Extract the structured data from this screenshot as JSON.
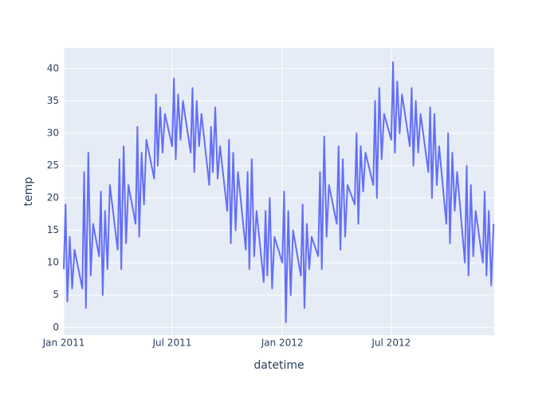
{
  "chart_data": {
    "type": "line",
    "x_label": "datetime",
    "y_label": "temp",
    "color": "#636efa",
    "grid": true,
    "x": [
      "2011-01-01",
      "2011-01-04",
      "2011-01-07",
      "2011-01-11",
      "2011-01-15",
      "2011-01-19",
      "2011-02-01",
      "2011-02-04",
      "2011-02-07",
      "2011-02-11",
      "2011-02-15",
      "2011-02-19",
      "2011-03-01",
      "2011-03-04",
      "2011-03-07",
      "2011-03-11",
      "2011-03-15",
      "2011-03-19",
      "2011-04-01",
      "2011-04-04",
      "2011-04-07",
      "2011-04-11",
      "2011-04-15",
      "2011-04-19",
      "2011-05-01",
      "2011-05-04",
      "2011-05-07",
      "2011-05-11",
      "2011-05-15",
      "2011-05-19",
      "2011-06-01",
      "2011-06-04",
      "2011-06-07",
      "2011-06-11",
      "2011-06-15",
      "2011-06-19",
      "2011-07-01",
      "2011-07-04",
      "2011-07-07",
      "2011-07-11",
      "2011-07-15",
      "2011-07-19",
      "2011-08-01",
      "2011-08-04",
      "2011-08-07",
      "2011-08-11",
      "2011-08-15",
      "2011-08-19",
      "2011-09-01",
      "2011-09-04",
      "2011-09-07",
      "2011-09-11",
      "2011-09-15",
      "2011-09-19",
      "2011-10-01",
      "2011-10-04",
      "2011-10-07",
      "2011-10-11",
      "2011-10-15",
      "2011-10-19",
      "2011-11-01",
      "2011-11-04",
      "2011-11-07",
      "2011-11-11",
      "2011-11-15",
      "2011-11-19",
      "2011-12-01",
      "2011-12-04",
      "2011-12-07",
      "2011-12-11",
      "2011-12-15",
      "2011-12-19",
      "2012-01-01",
      "2012-01-04",
      "2012-01-07",
      "2012-01-11",
      "2012-01-15",
      "2012-01-19",
      "2012-02-01",
      "2012-02-04",
      "2012-02-07",
      "2012-02-11",
      "2012-02-15",
      "2012-02-19",
      "2012-03-01",
      "2012-03-04",
      "2012-03-07",
      "2012-03-11",
      "2012-03-15",
      "2012-03-19",
      "2012-04-01",
      "2012-04-04",
      "2012-04-07",
      "2012-04-11",
      "2012-04-15",
      "2012-04-19",
      "2012-05-01",
      "2012-05-04",
      "2012-05-07",
      "2012-05-11",
      "2012-05-15",
      "2012-05-19",
      "2012-06-01",
      "2012-06-04",
      "2012-06-07",
      "2012-06-11",
      "2012-06-15",
      "2012-06-19",
      "2012-07-01",
      "2012-07-04",
      "2012-07-07",
      "2012-07-11",
      "2012-07-15",
      "2012-07-19",
      "2012-08-01",
      "2012-08-04",
      "2012-08-07",
      "2012-08-11",
      "2012-08-15",
      "2012-08-19",
      "2012-09-01",
      "2012-09-04",
      "2012-09-07",
      "2012-09-11",
      "2012-09-15",
      "2012-09-19",
      "2012-10-01",
      "2012-10-04",
      "2012-10-07",
      "2012-10-11",
      "2012-10-15",
      "2012-10-19",
      "2012-11-01",
      "2012-11-04",
      "2012-11-07",
      "2012-11-11",
      "2012-11-15",
      "2012-11-19",
      "2012-12-01",
      "2012-12-04",
      "2012-12-07",
      "2012-12-11",
      "2012-12-15",
      "2012-12-19"
    ],
    "values": [
      9,
      19,
      4,
      14,
      6,
      12,
      6,
      24,
      3,
      27,
      8,
      16,
      11,
      21,
      5,
      18,
      9,
      22,
      12,
      26,
      9,
      28,
      13,
      22,
      16,
      31,
      14,
      27,
      19,
      29,
      23,
      36,
      25,
      34,
      27,
      33,
      28,
      38.5,
      26,
      36,
      29,
      35,
      27,
      37,
      24,
      35,
      28,
      33,
      22,
      31,
      24,
      34,
      23,
      28,
      18,
      29,
      13,
      27,
      15,
      24,
      12,
      24,
      9,
      26,
      11,
      18,
      7,
      18,
      8,
      20,
      6,
      14,
      10,
      21,
      0.8,
      18,
      5,
      15,
      8,
      19,
      3,
      16,
      9,
      14,
      11,
      24,
      9,
      29.5,
      14,
      22,
      16,
      28,
      12,
      26,
      14,
      22,
      19,
      30,
      16,
      28,
      21,
      27,
      22,
      35,
      20,
      37,
      26,
      33,
      29,
      41,
      27,
      38,
      30,
      36,
      28,
      37,
      25,
      35,
      27,
      33,
      24,
      34,
      20,
      33,
      22,
      28,
      16,
      30,
      13,
      27,
      18,
      24,
      10,
      25,
      8,
      22,
      11,
      18,
      10,
      21,
      8,
      18,
      6.5,
      16
    ],
    "xlim": [
      "2011-01-01",
      "2012-12-20"
    ],
    "xticks": [
      {
        "value": "2011-01-01",
        "label": "Jan 2011"
      },
      {
        "value": "2011-07-01",
        "label": "Jul 2011"
      },
      {
        "value": "2012-01-01",
        "label": "Jan 2012"
      },
      {
        "value": "2012-07-01",
        "label": "Jul 2012"
      }
    ],
    "ylim": [
      -1.2,
      43.2
    ],
    "yticks": [
      0,
      5,
      10,
      15,
      20,
      25,
      30,
      35,
      40
    ]
  }
}
